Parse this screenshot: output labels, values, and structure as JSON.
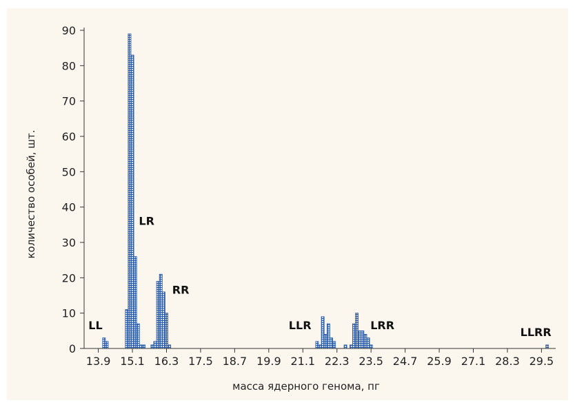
{
  "chart_data": {
    "type": "bar",
    "xlabel": "масса ядерного генома, пг",
    "ylabel": "количество особей, шт.",
    "ylim": [
      0,
      90
    ],
    "xlim": [
      13.4,
      30.0
    ],
    "y_ticks": [
      0,
      10,
      20,
      30,
      40,
      50,
      60,
      70,
      80,
      90
    ],
    "x_tick_labels": [
      "13.9",
      "15.1",
      "16.3",
      "17.5",
      "18.7",
      "19.9",
      "21.1",
      "22.3",
      "23.5",
      "24.7",
      "25.9",
      "27.1",
      "28.3",
      "29.5"
    ],
    "x_tick_values": [
      13.9,
      15.1,
      16.3,
      17.5,
      18.7,
      19.9,
      21.1,
      22.3,
      23.5,
      24.7,
      25.9,
      27.1,
      28.3,
      29.5
    ],
    "bin_width": 0.1,
    "bars": [
      {
        "x": 14.1,
        "value": 3
      },
      {
        "x": 14.2,
        "value": 2
      },
      {
        "x": 14.9,
        "value": 11
      },
      {
        "x": 15.0,
        "value": 89
      },
      {
        "x": 15.1,
        "value": 83
      },
      {
        "x": 15.2,
        "value": 26
      },
      {
        "x": 15.3,
        "value": 7
      },
      {
        "x": 15.4,
        "value": 1
      },
      {
        "x": 15.5,
        "value": 1
      },
      {
        "x": 15.8,
        "value": 1
      },
      {
        "x": 15.9,
        "value": 2
      },
      {
        "x": 16.0,
        "value": 19
      },
      {
        "x": 16.1,
        "value": 21
      },
      {
        "x": 16.2,
        "value": 16
      },
      {
        "x": 16.3,
        "value": 10
      },
      {
        "x": 16.4,
        "value": 1
      },
      {
        "x": 21.6,
        "value": 2
      },
      {
        "x": 21.7,
        "value": 1
      },
      {
        "x": 21.8,
        "value": 9
      },
      {
        "x": 21.9,
        "value": 4
      },
      {
        "x": 22.0,
        "value": 7
      },
      {
        "x": 22.1,
        "value": 3
      },
      {
        "x": 22.2,
        "value": 2
      },
      {
        "x": 22.6,
        "value": 1
      },
      {
        "x": 22.8,
        "value": 1
      },
      {
        "x": 22.9,
        "value": 7
      },
      {
        "x": 23.0,
        "value": 10
      },
      {
        "x": 23.1,
        "value": 5
      },
      {
        "x": 23.2,
        "value": 5
      },
      {
        "x": 23.3,
        "value": 4
      },
      {
        "x": 23.4,
        "value": 3
      },
      {
        "x": 23.5,
        "value": 1
      },
      {
        "x": 29.7,
        "value": 1
      }
    ],
    "annotations": [
      {
        "text": "LL",
        "x": 13.8,
        "y": 5.5
      },
      {
        "text": "LR",
        "x": 15.6,
        "y": 35
      },
      {
        "text": "RR",
        "x": 16.8,
        "y": 15.5
      },
      {
        "text": "LLR",
        "x": 21.0,
        "y": 5.5
      },
      {
        "text": "LRR",
        "x": 23.9,
        "y": 5.5
      },
      {
        "text": "LLRR",
        "x": 29.3,
        "y": 3.5
      }
    ],
    "grid": false,
    "legend": "none",
    "colors": {
      "bar_fill": "#cfe0f3",
      "bar_hatch": "#2a5aa8",
      "bar_stroke": "#2a5aa8",
      "axis": "#333333",
      "background": "#fbf7ee"
    }
  }
}
